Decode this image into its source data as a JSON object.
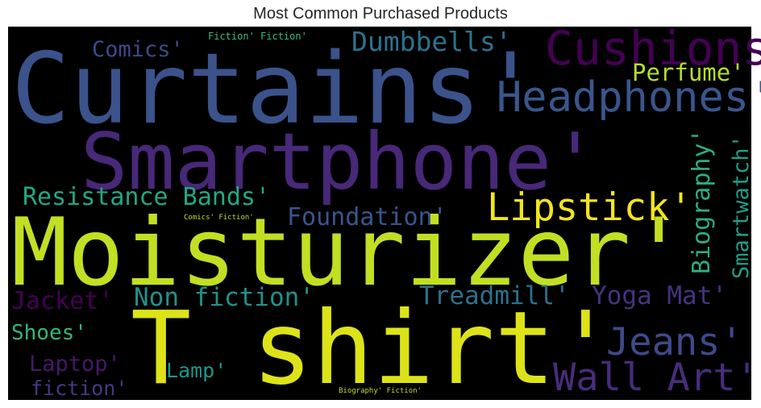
{
  "chart_data": {
    "type": "wordcloud",
    "title": "Most Common Purchased Products",
    "background": "#000000",
    "words": [
      {
        "text": "Moisturizer'",
        "color": "#c2df23"
      },
      {
        "text": "T shirt'",
        "color": "#dde318"
      },
      {
        "text": "Curtains'",
        "color": "#3b528b"
      },
      {
        "text": "Smartphone'",
        "color": "#482878"
      },
      {
        "text": "Cushions'",
        "color": "#440154"
      },
      {
        "text": "Headphones'",
        "color": "#39568c"
      },
      {
        "text": "Lipstick'",
        "color": "#f1e51d"
      },
      {
        "text": "Jeans'",
        "color": "#3e4a89"
      },
      {
        "text": "Wall Art'",
        "color": "#472d7b"
      },
      {
        "text": "Resistance Bands'",
        "color": "#22a884"
      },
      {
        "text": "Dumbbells'",
        "color": "#2c728e"
      },
      {
        "text": "Biography'",
        "color": "#2ab07f"
      },
      {
        "text": "Smartwatch'",
        "color": "#1f9e89"
      },
      {
        "text": "Foundation'",
        "color": "#39558c"
      },
      {
        "text": "Treadmill'",
        "color": "#2d708e"
      },
      {
        "text": "Yoga Mat'",
        "color": "#46337f"
      },
      {
        "text": "Non fiction'",
        "color": "#21918c"
      },
      {
        "text": "Perfume'",
        "color": "#b5de2b"
      },
      {
        "text": "Comics'",
        "color": "#3e4989"
      },
      {
        "text": "Jacket'",
        "color": "#440154"
      },
      {
        "text": "Shoes'",
        "color": "#35b779"
      },
      {
        "text": "Laptop'",
        "color": "#48186a"
      },
      {
        "text": "Lamp'",
        "color": "#1f968b"
      },
      {
        "text": "fiction'",
        "color": "#443983"
      },
      {
        "text": "Fiction' Fiction'",
        "color": "#3dbc74"
      },
      {
        "text": "Comics' Fiction'",
        "color": "#b8de29"
      },
      {
        "text": "Biography' Fiction'",
        "color": "#c0df25"
      }
    ]
  }
}
